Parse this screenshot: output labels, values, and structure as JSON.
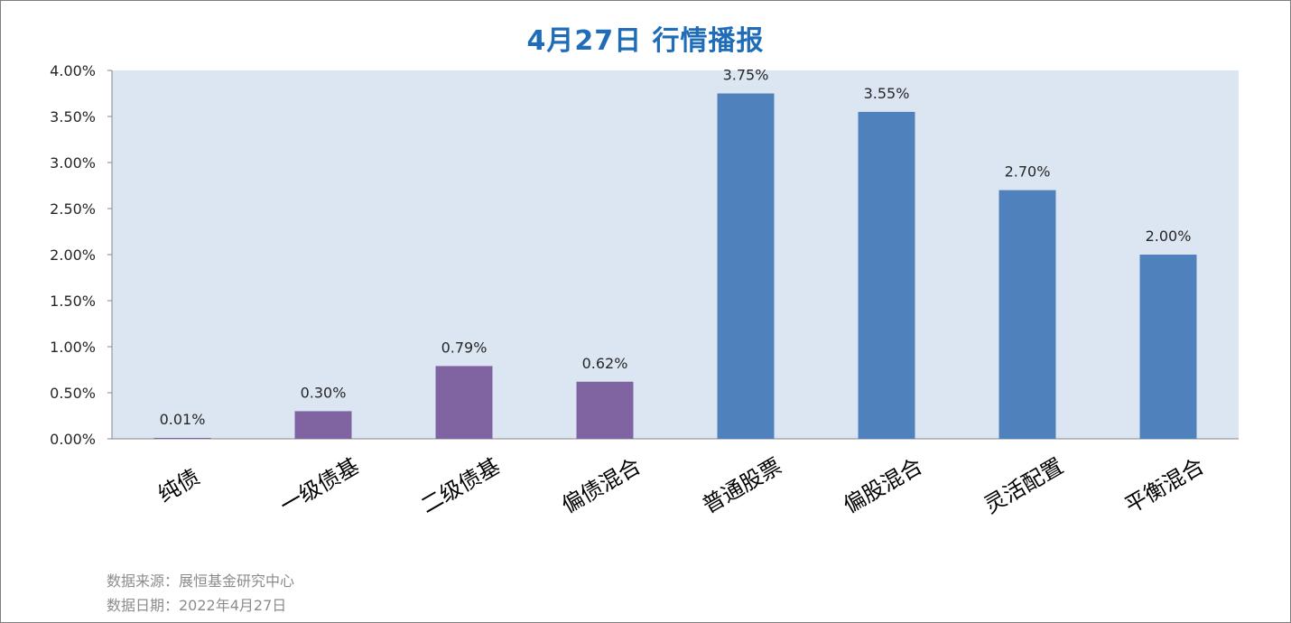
{
  "title": "4月27日  行情播报",
  "footer": {
    "source": "数据来源：展恒基金研究中心",
    "date": "数据日期：2022年4月27日"
  },
  "colors": {
    "plot_background": "#dce6f2",
    "bond_series": "#8064a2",
    "equity_series": "#4f81bd",
    "title": "#1f6cb8"
  },
  "chart_data": {
    "type": "bar",
    "title": "4月27日  行情播报",
    "xlabel": "",
    "ylabel": "",
    "categories": [
      "纯债",
      "一级债基",
      "二级债基",
      "偏债混合",
      "普通股票",
      "偏股混合",
      "灵活配置",
      "平衡混合"
    ],
    "values": [
      0.01,
      0.3,
      0.79,
      0.62,
      3.75,
      3.55,
      2.7,
      2.0
    ],
    "value_labels": [
      "0.01%",
      "0.30%",
      "0.79%",
      "0.62%",
      "3.75%",
      "3.55%",
      "2.70%",
      "2.00%"
    ],
    "bar_colors": [
      "#8064a2",
      "#8064a2",
      "#8064a2",
      "#8064a2",
      "#4f81bd",
      "#4f81bd",
      "#4f81bd",
      "#4f81bd"
    ],
    "ylim": [
      0,
      4.0
    ],
    "yticks": [
      0,
      0.5,
      1.0,
      1.5,
      2.0,
      2.5,
      3.0,
      3.5,
      4.0
    ],
    "ytick_labels": [
      "0.00%",
      "0.50%",
      "1.00%",
      "1.50%",
      "2.00%",
      "2.50%",
      "3.00%",
      "3.50%",
      "4.00%"
    ],
    "grid": false,
    "legend": "none"
  }
}
